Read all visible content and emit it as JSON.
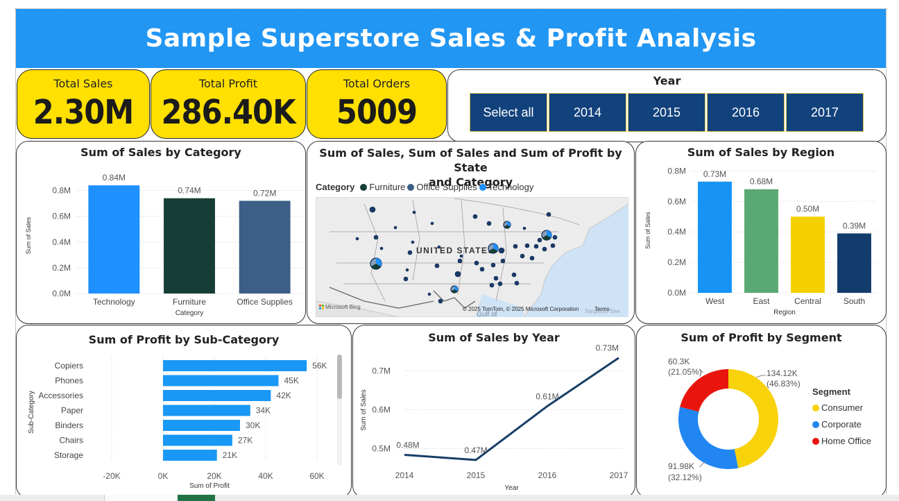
{
  "title": "Sample Superstore Sales & Profit Analysis",
  "kpis": [
    {
      "label": "Total Sales",
      "value": "2.30M"
    },
    {
      "label": "Total Profit",
      "value": "286.40K"
    },
    {
      "label": "Total Orders",
      "value": "5009"
    }
  ],
  "slicer": {
    "title": "Year",
    "options": [
      "Select all",
      "2014",
      "2015",
      "2016",
      "2017"
    ]
  },
  "colors": {
    "header": "#2196F3",
    "kpi": "#FFE000",
    "slicer": "#12427C",
    "technology": "#1E90FF",
    "furniture": "#173E36",
    "office_supplies": "#3D5F87",
    "west": "#1693F5",
    "east": "#5AA874",
    "central": "#F5D000",
    "south": "#123C6C",
    "profit_bar": "#1A98F5",
    "line": "#173E66",
    "consumer": "#F8D20A",
    "corporate": "#2186F2",
    "home_office": "#E8150E"
  },
  "map_card": {
    "title_line1": "Sum of Sales, Sum of Sales and Sum of Profit by State",
    "title_line2": "and Category",
    "legend_title": "Category",
    "legend_items": [
      "Furniture",
      "Office Supplies",
      "Technology"
    ],
    "map_label": "UNITED STATES",
    "bing": "Microsoft Bing",
    "attribution": "© 2025 TomTom, © 2025 Microsoft Corporation",
    "terms": "Terms",
    "gulf": "Gulf of",
    "sea": "Sargasso Sea"
  },
  "segment_card": {
    "title": "Sum of Profit by Segment",
    "legend_title": "Segment",
    "labels": [
      {
        "value": "134.12K",
        "pct": "(46.83%)"
      },
      {
        "value": "91.98K",
        "pct": "(32.12%)"
      },
      {
        "value": "60.3K",
        "pct": "(21.05%)"
      }
    ]
  },
  "chart_data": [
    {
      "type": "bar",
      "title": "Sum of Sales by Category",
      "xlabel": "Category",
      "ylabel": "Sum of Sales",
      "categories": [
        "Technology",
        "Furniture",
        "Office Supplies"
      ],
      "values": [
        0.84,
        0.74,
        0.72
      ],
      "data_labels": [
        "0.84M",
        "0.74M",
        "0.72M"
      ],
      "yticks": [
        "0.0M",
        "0.2M",
        "0.4M",
        "0.6M",
        "0.8M"
      ],
      "ylim": [
        0,
        0.9
      ]
    },
    {
      "type": "bar",
      "title": "Sum of Sales by Region",
      "xlabel": "Region",
      "ylabel": "Sum of Sales",
      "categories": [
        "West",
        "East",
        "Central",
        "South"
      ],
      "values": [
        0.73,
        0.68,
        0.5,
        0.39
      ],
      "data_labels": [
        "0.73M",
        "0.68M",
        "0.50M",
        "0.39M"
      ],
      "yticks": [
        "0.0M",
        "0.2M",
        "0.4M",
        "0.6M",
        "0.8M"
      ],
      "ylim": [
        0,
        0.82
      ]
    },
    {
      "type": "bar",
      "orientation": "horizontal",
      "title": "Sum of Profit by Sub-Category",
      "xlabel": "Sum of Profit",
      "ylabel": "Sub-Category",
      "categories": [
        "Copiers",
        "Phones",
        "Accessories",
        "Paper",
        "Binders",
        "Chairs",
        "Storage"
      ],
      "values": [
        56,
        45,
        42,
        34,
        30,
        27,
        21
      ],
      "data_labels": [
        "56K",
        "45K",
        "42K",
        "34K",
        "30K",
        "27K",
        "21K"
      ],
      "xticks": [
        "-20K",
        "0K",
        "20K",
        "40K",
        "60K"
      ],
      "xlim": [
        -20,
        60
      ]
    },
    {
      "type": "line",
      "title": "Sum of Sales by Year",
      "xlabel": "Year",
      "ylabel": "Sum of Sales",
      "x": [
        "2014",
        "2015",
        "2016",
        "2017"
      ],
      "values": [
        0.484,
        0.471,
        0.609,
        0.733
      ],
      "data_labels": [
        "0.48M",
        "0.47M",
        "0.61M",
        "0.73M"
      ],
      "yticks": [
        "0.5M",
        "0.6M",
        "0.7M"
      ],
      "ylim": [
        0.46,
        0.745
      ]
    },
    {
      "type": "pie",
      "title": "Sum of Profit by Segment",
      "categories": [
        "Consumer",
        "Corporate",
        "Home Office"
      ],
      "values": [
        134.12,
        91.98,
        60.3
      ],
      "percent": [
        46.83,
        32.12,
        21.05
      ]
    }
  ]
}
